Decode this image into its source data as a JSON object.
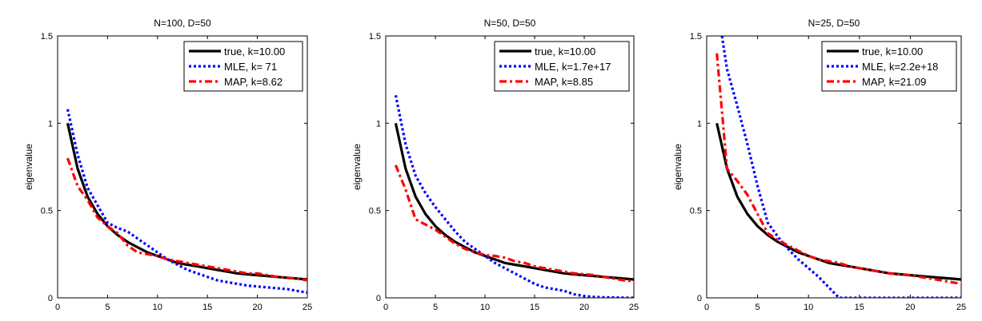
{
  "chart_data": [
    {
      "type": "line",
      "title": "N=100, D=50",
      "xlabel": "",
      "ylabel": "eigenvalue",
      "xlim": [
        0,
        25
      ],
      "ylim": [
        0,
        1.5
      ],
      "xticks": [
        0,
        5,
        10,
        15,
        20,
        25
      ],
      "yticks": [
        0,
        0.5,
        1,
        1.5
      ],
      "yticklabels": [
        "0",
        "0.5",
        "1",
        "1.5"
      ],
      "grid": false,
      "legend_position": "top-right",
      "series": [
        {
          "name": "true, k=10.00",
          "color": "#000000",
          "style": "solid",
          "x": [
            1,
            2,
            3,
            4,
            5,
            6,
            7,
            8,
            9,
            10,
            11,
            12,
            13,
            14,
            15,
            16,
            17,
            18,
            19,
            20,
            21,
            22,
            23,
            24,
            25
          ],
          "y": [
            1.0,
            0.74,
            0.58,
            0.48,
            0.41,
            0.36,
            0.32,
            0.29,
            0.26,
            0.24,
            0.22,
            0.2,
            0.19,
            0.18,
            0.17,
            0.16,
            0.15,
            0.14,
            0.135,
            0.13,
            0.125,
            0.12,
            0.115,
            0.11,
            0.105
          ]
        },
        {
          "name": "MLE, k=  71",
          "color": "#0000ff",
          "style": "dotted",
          "x": [
            1,
            2,
            3,
            4,
            5,
            6,
            7,
            8,
            9,
            10,
            11,
            12,
            13,
            14,
            15,
            16,
            17,
            18,
            19,
            20,
            21,
            22,
            23,
            24,
            25
          ],
          "y": [
            1.08,
            0.82,
            0.63,
            0.53,
            0.43,
            0.4,
            0.38,
            0.34,
            0.3,
            0.26,
            0.22,
            0.19,
            0.16,
            0.14,
            0.12,
            0.1,
            0.09,
            0.08,
            0.07,
            0.065,
            0.06,
            0.055,
            0.05,
            0.04,
            0.03
          ]
        },
        {
          "name": "MAP, k=8.62",
          "color": "#ff0000",
          "style": "dashdot",
          "x": [
            1,
            2,
            3,
            4,
            5,
            6,
            7,
            8,
            9,
            10,
            11,
            12,
            13,
            14,
            15,
            16,
            17,
            18,
            19,
            20,
            21,
            22,
            23,
            24,
            25
          ],
          "y": [
            0.8,
            0.64,
            0.56,
            0.46,
            0.41,
            0.37,
            0.3,
            0.26,
            0.25,
            0.24,
            0.22,
            0.21,
            0.2,
            0.19,
            0.18,
            0.17,
            0.16,
            0.15,
            0.14,
            0.14,
            0.13,
            0.12,
            0.115,
            0.11,
            0.1
          ]
        }
      ]
    },
    {
      "type": "line",
      "title": "N=50, D=50",
      "xlabel": "",
      "ylabel": "eigenvalue",
      "xlim": [
        0,
        25
      ],
      "ylim": [
        0,
        1.5
      ],
      "xticks": [
        0,
        5,
        10,
        15,
        20,
        25
      ],
      "yticks": [
        0,
        0.5,
        1,
        1.5
      ],
      "yticklabels": [
        "0",
        "0.5",
        "1",
        "1.5"
      ],
      "grid": false,
      "legend_position": "top-right",
      "series": [
        {
          "name": "true, k=10.00",
          "color": "#000000",
          "style": "solid",
          "x": [
            1,
            2,
            3,
            4,
            5,
            6,
            7,
            8,
            9,
            10,
            11,
            12,
            13,
            14,
            15,
            16,
            17,
            18,
            19,
            20,
            21,
            22,
            23,
            24,
            25
          ],
          "y": [
            1.0,
            0.74,
            0.58,
            0.48,
            0.41,
            0.36,
            0.32,
            0.29,
            0.26,
            0.24,
            0.22,
            0.2,
            0.19,
            0.18,
            0.17,
            0.16,
            0.15,
            0.14,
            0.135,
            0.13,
            0.125,
            0.12,
            0.115,
            0.11,
            0.105
          ]
        },
        {
          "name": "MLE, k=1.7e+17",
          "color": "#0000ff",
          "style": "dotted",
          "x": [
            1,
            2,
            3,
            4,
            5,
            6,
            7,
            8,
            9,
            10,
            11,
            12,
            13,
            14,
            15,
            16,
            17,
            18,
            19,
            20,
            21,
            22,
            23,
            24,
            25
          ],
          "y": [
            1.16,
            0.88,
            0.7,
            0.6,
            0.52,
            0.45,
            0.38,
            0.32,
            0.28,
            0.24,
            0.2,
            0.17,
            0.14,
            0.11,
            0.08,
            0.06,
            0.05,
            0.04,
            0.02,
            0.01,
            0.005,
            0.003,
            0.002,
            0.001,
            0.0
          ]
        },
        {
          "name": "MAP, k=8.85",
          "color": "#ff0000",
          "style": "dashdot",
          "x": [
            1,
            2,
            3,
            4,
            5,
            6,
            7,
            8,
            9,
            10,
            11,
            12,
            13,
            14,
            15,
            16,
            17,
            18,
            19,
            20,
            21,
            22,
            23,
            24,
            25
          ],
          "y": [
            0.76,
            0.62,
            0.45,
            0.42,
            0.39,
            0.35,
            0.31,
            0.28,
            0.26,
            0.245,
            0.24,
            0.23,
            0.21,
            0.2,
            0.18,
            0.17,
            0.16,
            0.15,
            0.14,
            0.135,
            0.13,
            0.12,
            0.11,
            0.1,
            0.095
          ]
        }
      ]
    },
    {
      "type": "line",
      "title": "N=25, D=50",
      "xlabel": "",
      "ylabel": "eigenvalue",
      "xlim": [
        0,
        25
      ],
      "ylim": [
        0,
        1.5
      ],
      "xticks": [
        0,
        5,
        10,
        15,
        20,
        25
      ],
      "yticks": [
        0,
        0.5,
        1,
        1.5
      ],
      "yticklabels": [
        "0",
        "0.5",
        "1",
        "1.5"
      ],
      "grid": false,
      "legend_position": "top-right",
      "series": [
        {
          "name": "true, k=10.00",
          "color": "#000000",
          "style": "solid",
          "x": [
            1,
            2,
            3,
            4,
            5,
            6,
            7,
            8,
            9,
            10,
            11,
            12,
            13,
            14,
            15,
            16,
            17,
            18,
            19,
            20,
            21,
            22,
            23,
            24,
            25
          ],
          "y": [
            1.0,
            0.74,
            0.58,
            0.48,
            0.41,
            0.36,
            0.32,
            0.29,
            0.26,
            0.24,
            0.22,
            0.2,
            0.19,
            0.18,
            0.17,
            0.16,
            0.15,
            0.14,
            0.135,
            0.13,
            0.125,
            0.12,
            0.115,
            0.11,
            0.105
          ]
        },
        {
          "name": "MLE, k=2.2e+18",
          "color": "#0000ff",
          "style": "dotted",
          "x": [
            1.5,
            2,
            3,
            4,
            5,
            6,
            7,
            8,
            9,
            10,
            11,
            12,
            13,
            14,
            15,
            16,
            17,
            18,
            19,
            20,
            21,
            22,
            23,
            24,
            25
          ],
          "y": [
            1.5,
            1.31,
            1.1,
            0.88,
            0.64,
            0.43,
            0.35,
            0.28,
            0.22,
            0.17,
            0.12,
            0.06,
            0.0,
            0.0,
            0.0,
            0.0,
            0.0,
            0.0,
            0.0,
            0.0,
            0.0,
            0.0,
            0.0,
            0.0,
            0.0
          ]
        },
        {
          "name": "MAP, k=21.09",
          "color": "#ff0000",
          "style": "dashdot",
          "x": [
            1,
            2,
            3,
            4,
            5,
            6,
            7,
            8,
            9,
            10,
            11,
            12,
            13,
            14,
            15,
            16,
            17,
            18,
            19,
            20,
            21,
            22,
            23,
            24,
            25
          ],
          "y": [
            1.4,
            0.74,
            0.67,
            0.59,
            0.48,
            0.37,
            0.33,
            0.3,
            0.27,
            0.24,
            0.22,
            0.21,
            0.2,
            0.18,
            0.17,
            0.16,
            0.15,
            0.14,
            0.135,
            0.13,
            0.12,
            0.11,
            0.1,
            0.09,
            0.08
          ]
        }
      ]
    }
  ]
}
